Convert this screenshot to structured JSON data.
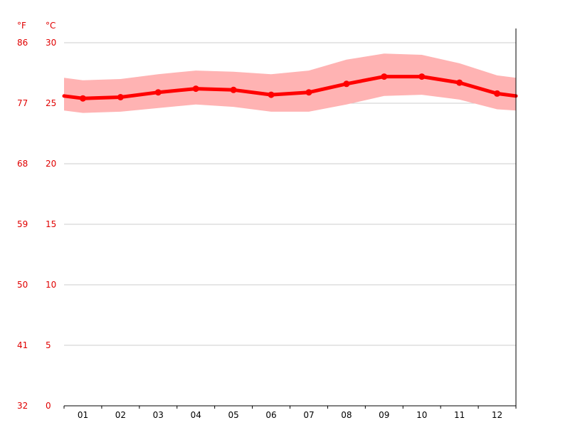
{
  "chart_data": {
    "type": "line",
    "title": "",
    "xlabel": "",
    "ylabel": "",
    "units": {
      "left": "°F",
      "right": "°C"
    },
    "categories": [
      "01",
      "02",
      "03",
      "04",
      "05",
      "06",
      "07",
      "08",
      "09",
      "10",
      "11",
      "12"
    ],
    "series": [
      {
        "values": [
          25.4,
          25.5,
          25.9,
          26.2,
          26.1,
          25.7,
          25.9,
          26.6,
          27.2,
          27.2,
          26.7,
          25.8
        ]
      }
    ],
    "band": {
      "upper": [
        26.9,
        27.0,
        27.4,
        27.7,
        27.6,
        27.4,
        27.7,
        28.6,
        29.1,
        29.0,
        28.3,
        27.3
      ],
      "lower": [
        24.2,
        24.3,
        24.6,
        24.9,
        24.7,
        24.3,
        24.3,
        24.9,
        25.6,
        25.7,
        25.3,
        24.5
      ]
    },
    "edges": {
      "start": {
        "value": 25.6,
        "upper": 27.1,
        "lower": 24.4
      },
      "end": {
        "value": 25.6,
        "upper": 27.1,
        "lower": 24.4
      }
    },
    "y_ticks_c": [
      "30",
      "25",
      "20",
      "15",
      "10",
      "5",
      "0"
    ],
    "y_ticks_f": [
      "86",
      "77",
      "68",
      "59",
      "50",
      "41",
      "32"
    ],
    "ylim": [
      0,
      30
    ],
    "grid": true,
    "colors": {
      "line": "#ff0000",
      "band": "#ffb3b3",
      "axis_text": "#e00000",
      "grid": "#cccccc"
    }
  }
}
